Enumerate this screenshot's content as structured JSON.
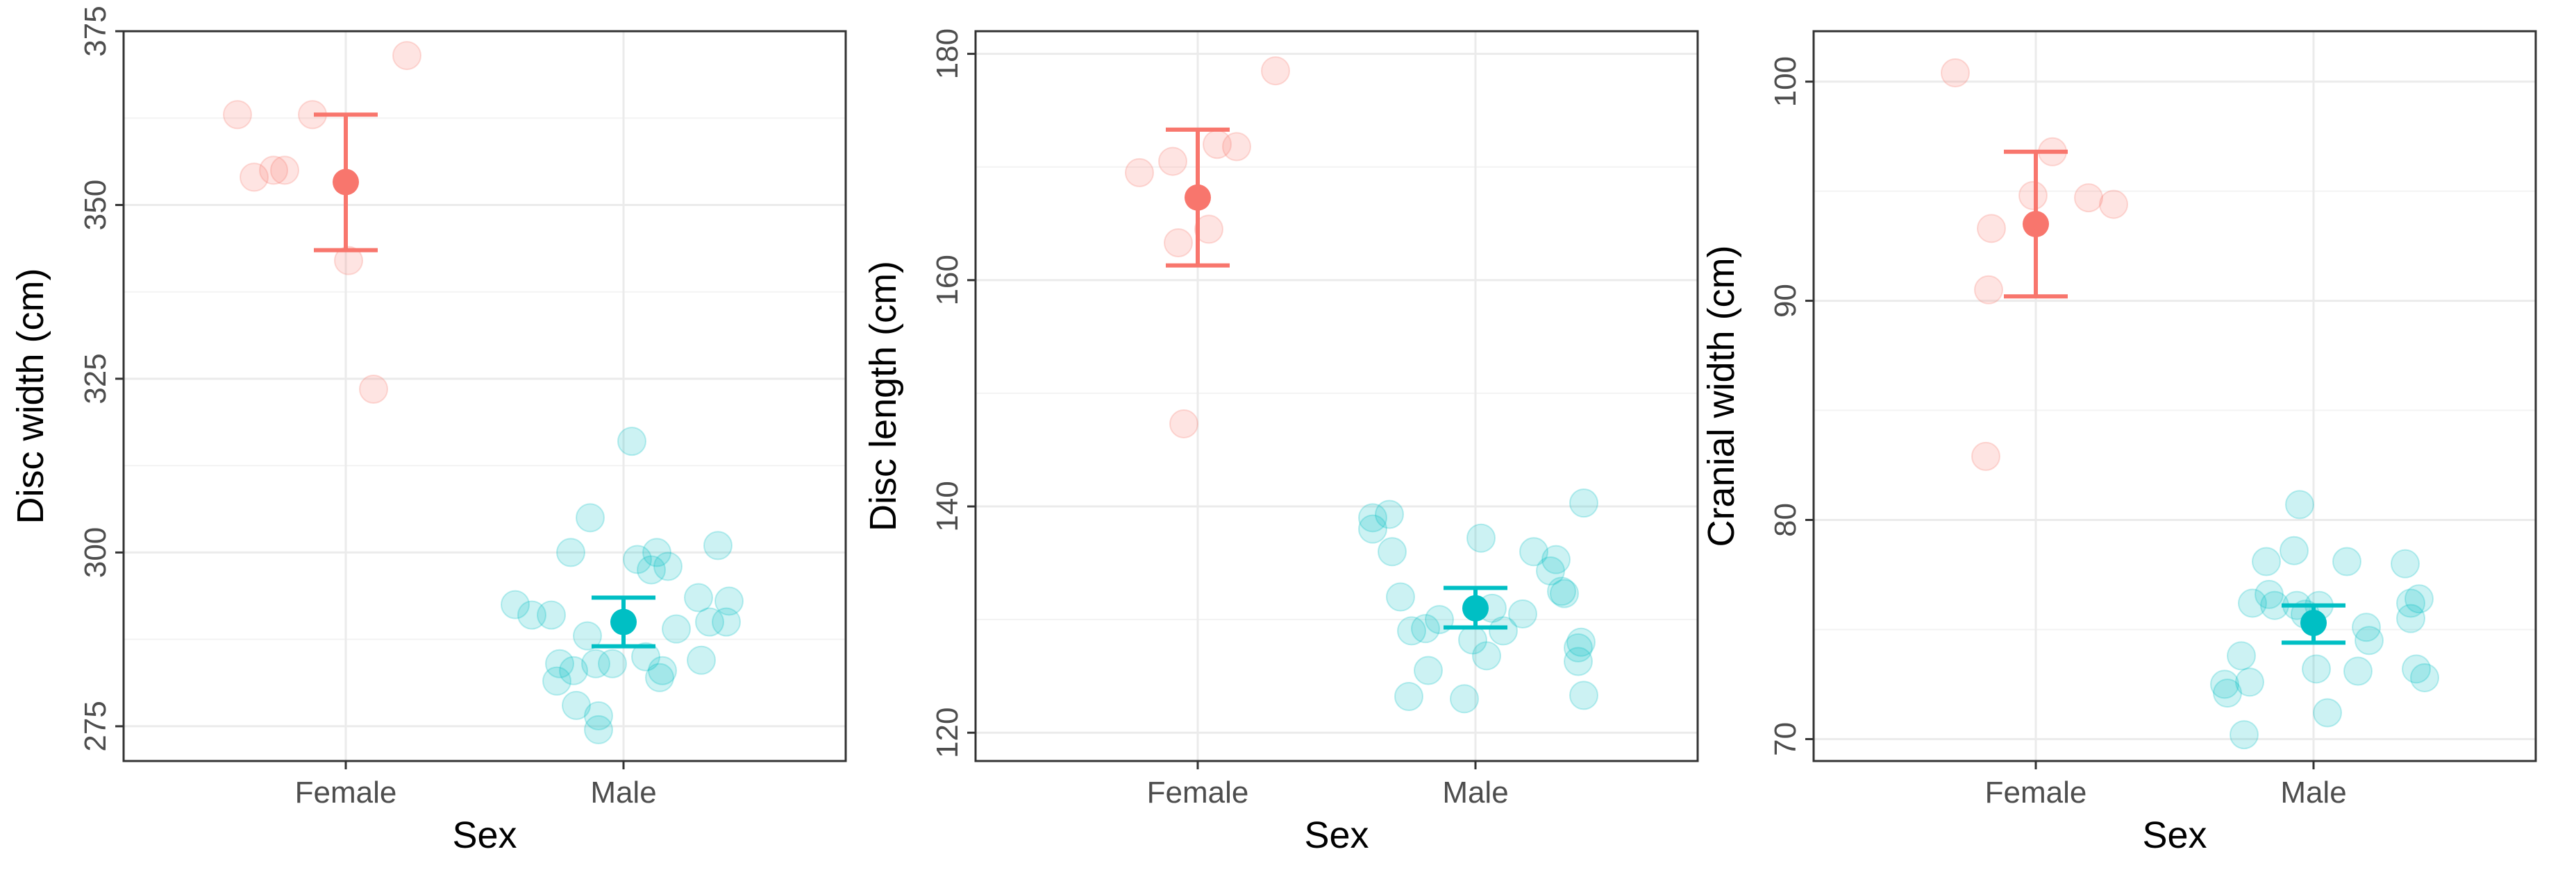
{
  "chart_data": [
    {
      "type": "scatter",
      "subtype": "jitter-with-mean-errorbar",
      "xlabel": "Sex",
      "ylabel": "Disc width (cm)",
      "categories": [
        "Female",
        "Male"
      ],
      "ylim": [
        270,
        375
      ],
      "yticks": [
        275,
        300,
        325,
        350,
        375
      ],
      "grid": true,
      "colors": {
        "Female": "#F8766D",
        "Male": "#00BFC4"
      },
      "series": [
        {
          "name": "Female",
          "points": [
            {
              "x": -0.39,
              "y": 363
            },
            {
              "x": -0.33,
              "y": 354
            },
            {
              "x": -0.26,
              "y": 355
            },
            {
              "x": -0.22,
              "y": 355
            },
            {
              "x": -0.12,
              "y": 363
            },
            {
              "x": 0.01,
              "y": 342
            },
            {
              "x": 0.1,
              "y": 323.5
            },
            {
              "x": 0.22,
              "y": 371.5
            }
          ],
          "mean": 353.3,
          "lower": 343.5,
          "upper": 363
        },
        {
          "name": "Male",
          "points": [
            {
              "x": -0.39,
              "y": 292.5
            },
            {
              "x": -0.33,
              "y": 291
            },
            {
              "x": -0.26,
              "y": 291
            },
            {
              "x": -0.24,
              "y": 281.5
            },
            {
              "x": -0.23,
              "y": 284
            },
            {
              "x": -0.19,
              "y": 300
            },
            {
              "x": -0.18,
              "y": 283
            },
            {
              "x": -0.17,
              "y": 278
            },
            {
              "x": -0.12,
              "y": 305
            },
            {
              "x": -0.13,
              "y": 288
            },
            {
              "x": -0.1,
              "y": 284
            },
            {
              "x": -0.09,
              "y": 276.5
            },
            {
              "x": -0.09,
              "y": 274.5
            },
            {
              "x": -0.04,
              "y": 284
            },
            {
              "x": 0.03,
              "y": 316
            },
            {
              "x": 0.05,
              "y": 299
            },
            {
              "x": 0.08,
              "y": 285
            },
            {
              "x": 0.1,
              "y": 297.5
            },
            {
              "x": 0.12,
              "y": 300
            },
            {
              "x": 0.13,
              "y": 282
            },
            {
              "x": 0.14,
              "y": 283
            },
            {
              "x": 0.16,
              "y": 298
            },
            {
              "x": 0.19,
              "y": 289
            },
            {
              "x": 0.27,
              "y": 293.5
            },
            {
              "x": 0.28,
              "y": 284.5
            },
            {
              "x": 0.31,
              "y": 290
            },
            {
              "x": 0.34,
              "y": 301
            },
            {
              "x": 0.37,
              "y": 290
            },
            {
              "x": 0.38,
              "y": 293
            }
          ],
          "mean": 290,
          "lower": 286.5,
          "upper": 293.5
        }
      ]
    },
    {
      "type": "scatter",
      "subtype": "jitter-with-mean-errorbar",
      "xlabel": "Sex",
      "ylabel": "Disc length (cm)",
      "categories": [
        "Female",
        "Male"
      ],
      "ylim": [
        117.5,
        182
      ],
      "yticks": [
        120,
        140,
        160,
        180
      ],
      "grid": true,
      "colors": {
        "Female": "#F8766D",
        "Male": "#00BFC4"
      },
      "series": [
        {
          "name": "Female",
          "points": [
            {
              "x": -0.21,
              "y": 169.5
            },
            {
              "x": -0.09,
              "y": 170.5
            },
            {
              "x": -0.07,
              "y": 163.3
            },
            {
              "x": -0.05,
              "y": 147.3
            },
            {
              "x": 0.04,
              "y": 164.5
            },
            {
              "x": 0.07,
              "y": 172
            },
            {
              "x": 0.14,
              "y": 171.8
            },
            {
              "x": 0.28,
              "y": 178.5
            }
          ],
          "mean": 167.3,
          "lower": 161.3,
          "upper": 173.3
        },
        {
          "name": "Male",
          "points": [
            {
              "x": -0.37,
              "y": 139
            },
            {
              "x": -0.37,
              "y": 138
            },
            {
              "x": -0.31,
              "y": 139.3
            },
            {
              "x": -0.3,
              "y": 136
            },
            {
              "x": -0.27,
              "y": 132
            },
            {
              "x": -0.24,
              "y": 123.2
            },
            {
              "x": -0.23,
              "y": 129
            },
            {
              "x": -0.18,
              "y": 129.2
            },
            {
              "x": -0.17,
              "y": 125.5
            },
            {
              "x": -0.13,
              "y": 130
            },
            {
              "x": -0.04,
              "y": 123
            },
            {
              "x": -0.01,
              "y": 128.2
            },
            {
              "x": 0.02,
              "y": 137.2
            },
            {
              "x": 0.04,
              "y": 126.8
            },
            {
              "x": 0.06,
              "y": 131
            },
            {
              "x": 0.1,
              "y": 129
            },
            {
              "x": 0.17,
              "y": 130.5
            },
            {
              "x": 0.21,
              "y": 136
            },
            {
              "x": 0.27,
              "y": 134.3
            },
            {
              "x": 0.29,
              "y": 135.3
            },
            {
              "x": 0.31,
              "y": 132.5
            },
            {
              "x": 0.32,
              "y": 132.3
            },
            {
              "x": 0.37,
              "y": 127.5
            },
            {
              "x": 0.37,
              "y": 126.3
            },
            {
              "x": 0.38,
              "y": 128
            },
            {
              "x": 0.39,
              "y": 140.3
            },
            {
              "x": 0.39,
              "y": 123.3
            }
          ],
          "mean": 131,
          "lower": 129.3,
          "upper": 132.8
        }
      ]
    },
    {
      "type": "scatter",
      "subtype": "jitter-with-mean-errorbar",
      "xlabel": "Sex",
      "ylabel": "Cranial width (cm)",
      "categories": [
        "Female",
        "Male"
      ],
      "ylim": [
        69,
        102.3
      ],
      "yticks": [
        70,
        80,
        90,
        100
      ],
      "grid": true,
      "colors": {
        "Female": "#F8766D",
        "Male": "#00BFC4"
      },
      "series": [
        {
          "name": "Female",
          "points": [
            {
              "x": -0.29,
              "y": 100.4
            },
            {
              "x": -0.18,
              "y": 82.9
            },
            {
              "x": -0.17,
              "y": 90.5
            },
            {
              "x": -0.16,
              "y": 93.3
            },
            {
              "x": -0.01,
              "y": 94.8
            },
            {
              "x": 0.06,
              "y": 96.8
            },
            {
              "x": 0.19,
              "y": 94.7
            },
            {
              "x": 0.28,
              "y": 94.4
            }
          ],
          "mean": 93.5,
          "lower": 90.2,
          "upper": 96.8
        },
        {
          "name": "Male",
          "points": [
            {
              "x": -0.32,
              "y": 72.5
            },
            {
              "x": -0.31,
              "y": 72.1
            },
            {
              "x": -0.26,
              "y": 73.8
            },
            {
              "x": -0.25,
              "y": 70.2
            },
            {
              "x": -0.23,
              "y": 72.6
            },
            {
              "x": -0.22,
              "y": 76.2
            },
            {
              "x": -0.17,
              "y": 78.1
            },
            {
              "x": -0.16,
              "y": 76.6
            },
            {
              "x": -0.14,
              "y": 76.1
            },
            {
              "x": -0.07,
              "y": 78.6
            },
            {
              "x": -0.06,
              "y": 76.1
            },
            {
              "x": -0.05,
              "y": 80.7
            },
            {
              "x": -0.03,
              "y": 75.7
            },
            {
              "x": 0.02,
              "y": 76.1
            },
            {
              "x": 0.01,
              "y": 73.2
            },
            {
              "x": 0.05,
              "y": 71.2
            },
            {
              "x": 0.12,
              "y": 78.1
            },
            {
              "x": 0.16,
              "y": 73.1
            },
            {
              "x": 0.19,
              "y": 75.1
            },
            {
              "x": 0.2,
              "y": 74.5
            },
            {
              "x": 0.33,
              "y": 78
            },
            {
              "x": 0.35,
              "y": 76.2
            },
            {
              "x": 0.35,
              "y": 75.5
            },
            {
              "x": 0.37,
              "y": 73.2
            },
            {
              "x": 0.38,
              "y": 76.4
            },
            {
              "x": 0.4,
              "y": 72.8
            }
          ],
          "mean": 75.3,
          "lower": 74.4,
          "upper": 76.1
        }
      ]
    }
  ]
}
